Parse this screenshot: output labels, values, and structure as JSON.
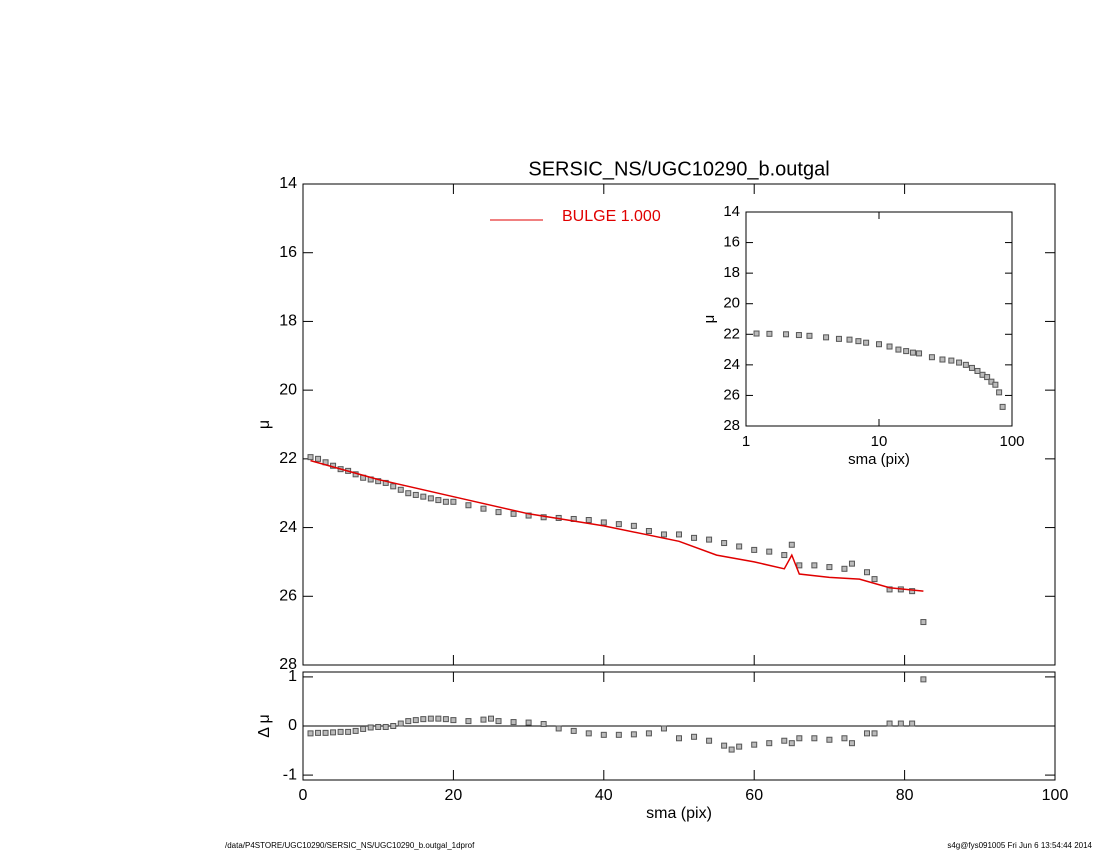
{
  "chart_data": [
    {
      "type": "scatter",
      "title": "SERSIC_NS/UGC10290_b.outgal",
      "ylabel": "μ",
      "xlim": [
        0,
        100
      ],
      "ylim": [
        28,
        14
      ],
      "xticks": [
        0,
        20,
        40,
        60,
        80,
        100
      ],
      "yticks": [
        14,
        16,
        18,
        20,
        22,
        24,
        26,
        28
      ],
      "series": [
        {
          "color": "#555555",
          "style": "marker",
          "x": [
            1,
            2,
            3,
            4,
            5,
            6,
            7,
            8,
            9,
            10,
            11,
            12,
            13,
            14,
            15,
            16,
            17,
            18,
            19,
            20,
            22,
            24,
            26,
            28,
            30,
            32,
            34,
            36,
            38,
            40,
            42,
            44,
            46,
            48,
            50,
            52,
            54,
            56,
            58,
            60,
            62,
            64,
            65,
            66,
            68,
            70,
            72,
            73,
            75,
            76,
            78,
            79.5,
            81,
            82.5
          ],
          "values": [
            21.95,
            22.0,
            22.1,
            22.2,
            22.3,
            22.35,
            22.45,
            22.55,
            22.6,
            22.65,
            22.7,
            22.8,
            22.9,
            23.0,
            23.05,
            23.1,
            23.15,
            23.2,
            23.25,
            23.25,
            23.35,
            23.45,
            23.55,
            23.6,
            23.65,
            23.7,
            23.72,
            23.75,
            23.78,
            23.85,
            23.9,
            23.95,
            24.1,
            24.2,
            24.2,
            24.3,
            24.35,
            24.45,
            24.55,
            24.65,
            24.7,
            24.8,
            24.5,
            25.1,
            25.1,
            25.15,
            25.2,
            25.05,
            25.3,
            25.5,
            25.8,
            25.8,
            25.85,
            26.75
          ]
        },
        {
          "name": "BULGE  1.000",
          "color": "#e00000",
          "style": "line",
          "x": [
            1,
            10,
            20,
            30,
            40,
            50,
            55,
            60,
            64,
            65,
            66,
            70,
            74,
            78,
            82.5
          ],
          "values": [
            22.05,
            22.6,
            23.1,
            23.6,
            23.95,
            24.4,
            24.8,
            25.0,
            25.2,
            24.8,
            25.35,
            25.45,
            25.5,
            25.75,
            25.85
          ]
        }
      ]
    },
    {
      "type": "scatter",
      "xlabel": "sma (pix)",
      "ylabel": "μ",
      "xlog": true,
      "xlim": [
        1,
        100
      ],
      "ylim": [
        28,
        14
      ],
      "xticks": [
        1,
        10,
        100
      ],
      "yticks": [
        14,
        16,
        18,
        20,
        22,
        24,
        26,
        28
      ],
      "series": [
        {
          "color": "#555555",
          "style": "marker",
          "x": [
            1.2,
            1.5,
            2,
            2.5,
            3,
            4,
            5,
            6,
            7,
            8,
            10,
            12,
            14,
            16,
            18,
            20,
            25,
            30,
            35,
            40,
            45,
            50,
            55,
            60,
            65,
            70,
            75,
            80,
            85
          ],
          "values": [
            21.95,
            21.97,
            22.0,
            22.05,
            22.1,
            22.2,
            22.3,
            22.35,
            22.45,
            22.55,
            22.65,
            22.8,
            23.0,
            23.1,
            23.2,
            23.25,
            23.5,
            23.65,
            23.72,
            23.85,
            24.0,
            24.2,
            24.4,
            24.65,
            24.8,
            25.1,
            25.3,
            25.8,
            26.75
          ]
        }
      ]
    },
    {
      "type": "scatter",
      "xlabel": "sma (pix)",
      "ylabel": "Δ μ",
      "xlim": [
        0,
        100
      ],
      "ylim": [
        -1.1,
        1.1
      ],
      "xticks": [
        0,
        20,
        40,
        60,
        80,
        100
      ],
      "yticks": [
        -1,
        0,
        1
      ],
      "hline": 0,
      "series": [
        {
          "color": "#555555",
          "style": "marker",
          "x": [
            1,
            2,
            3,
            4,
            5,
            6,
            7,
            8,
            9,
            10,
            11,
            12,
            13,
            14,
            15,
            16,
            17,
            18,
            19,
            20,
            22,
            24,
            25,
            26,
            28,
            30,
            32,
            34,
            36,
            38,
            40,
            42,
            44,
            46,
            48,
            50,
            52,
            54,
            56,
            57,
            58,
            60,
            62,
            64,
            65,
            66,
            68,
            70,
            72,
            73,
            75,
            76,
            78,
            79.5,
            81,
            82.5
          ],
          "values": [
            -0.15,
            -0.14,
            -0.14,
            -0.13,
            -0.12,
            -0.12,
            -0.1,
            -0.06,
            -0.03,
            -0.02,
            -0.02,
            0.0,
            0.05,
            0.1,
            0.12,
            0.14,
            0.15,
            0.15,
            0.14,
            0.12,
            0.1,
            0.13,
            0.15,
            0.1,
            0.08,
            0.07,
            0.04,
            -0.05,
            -0.1,
            -0.15,
            -0.18,
            -0.18,
            -0.17,
            -0.15,
            -0.05,
            -0.25,
            -0.22,
            -0.3,
            -0.4,
            -0.48,
            -0.42,
            -0.38,
            -0.35,
            -0.3,
            -0.35,
            -0.25,
            -0.25,
            -0.28,
            -0.25,
            -0.35,
            -0.15,
            -0.15,
            0.05,
            0.05,
            0.05,
            0.95
          ]
        }
      ]
    }
  ],
  "footer": {
    "left": "/data/P4STORE/UGC10290/SERSIC_NS/UGC10290_b.outgal_1dprof",
    "right": "s4g@fys091005  Fri Jun  6 13:54:44 2014"
  }
}
